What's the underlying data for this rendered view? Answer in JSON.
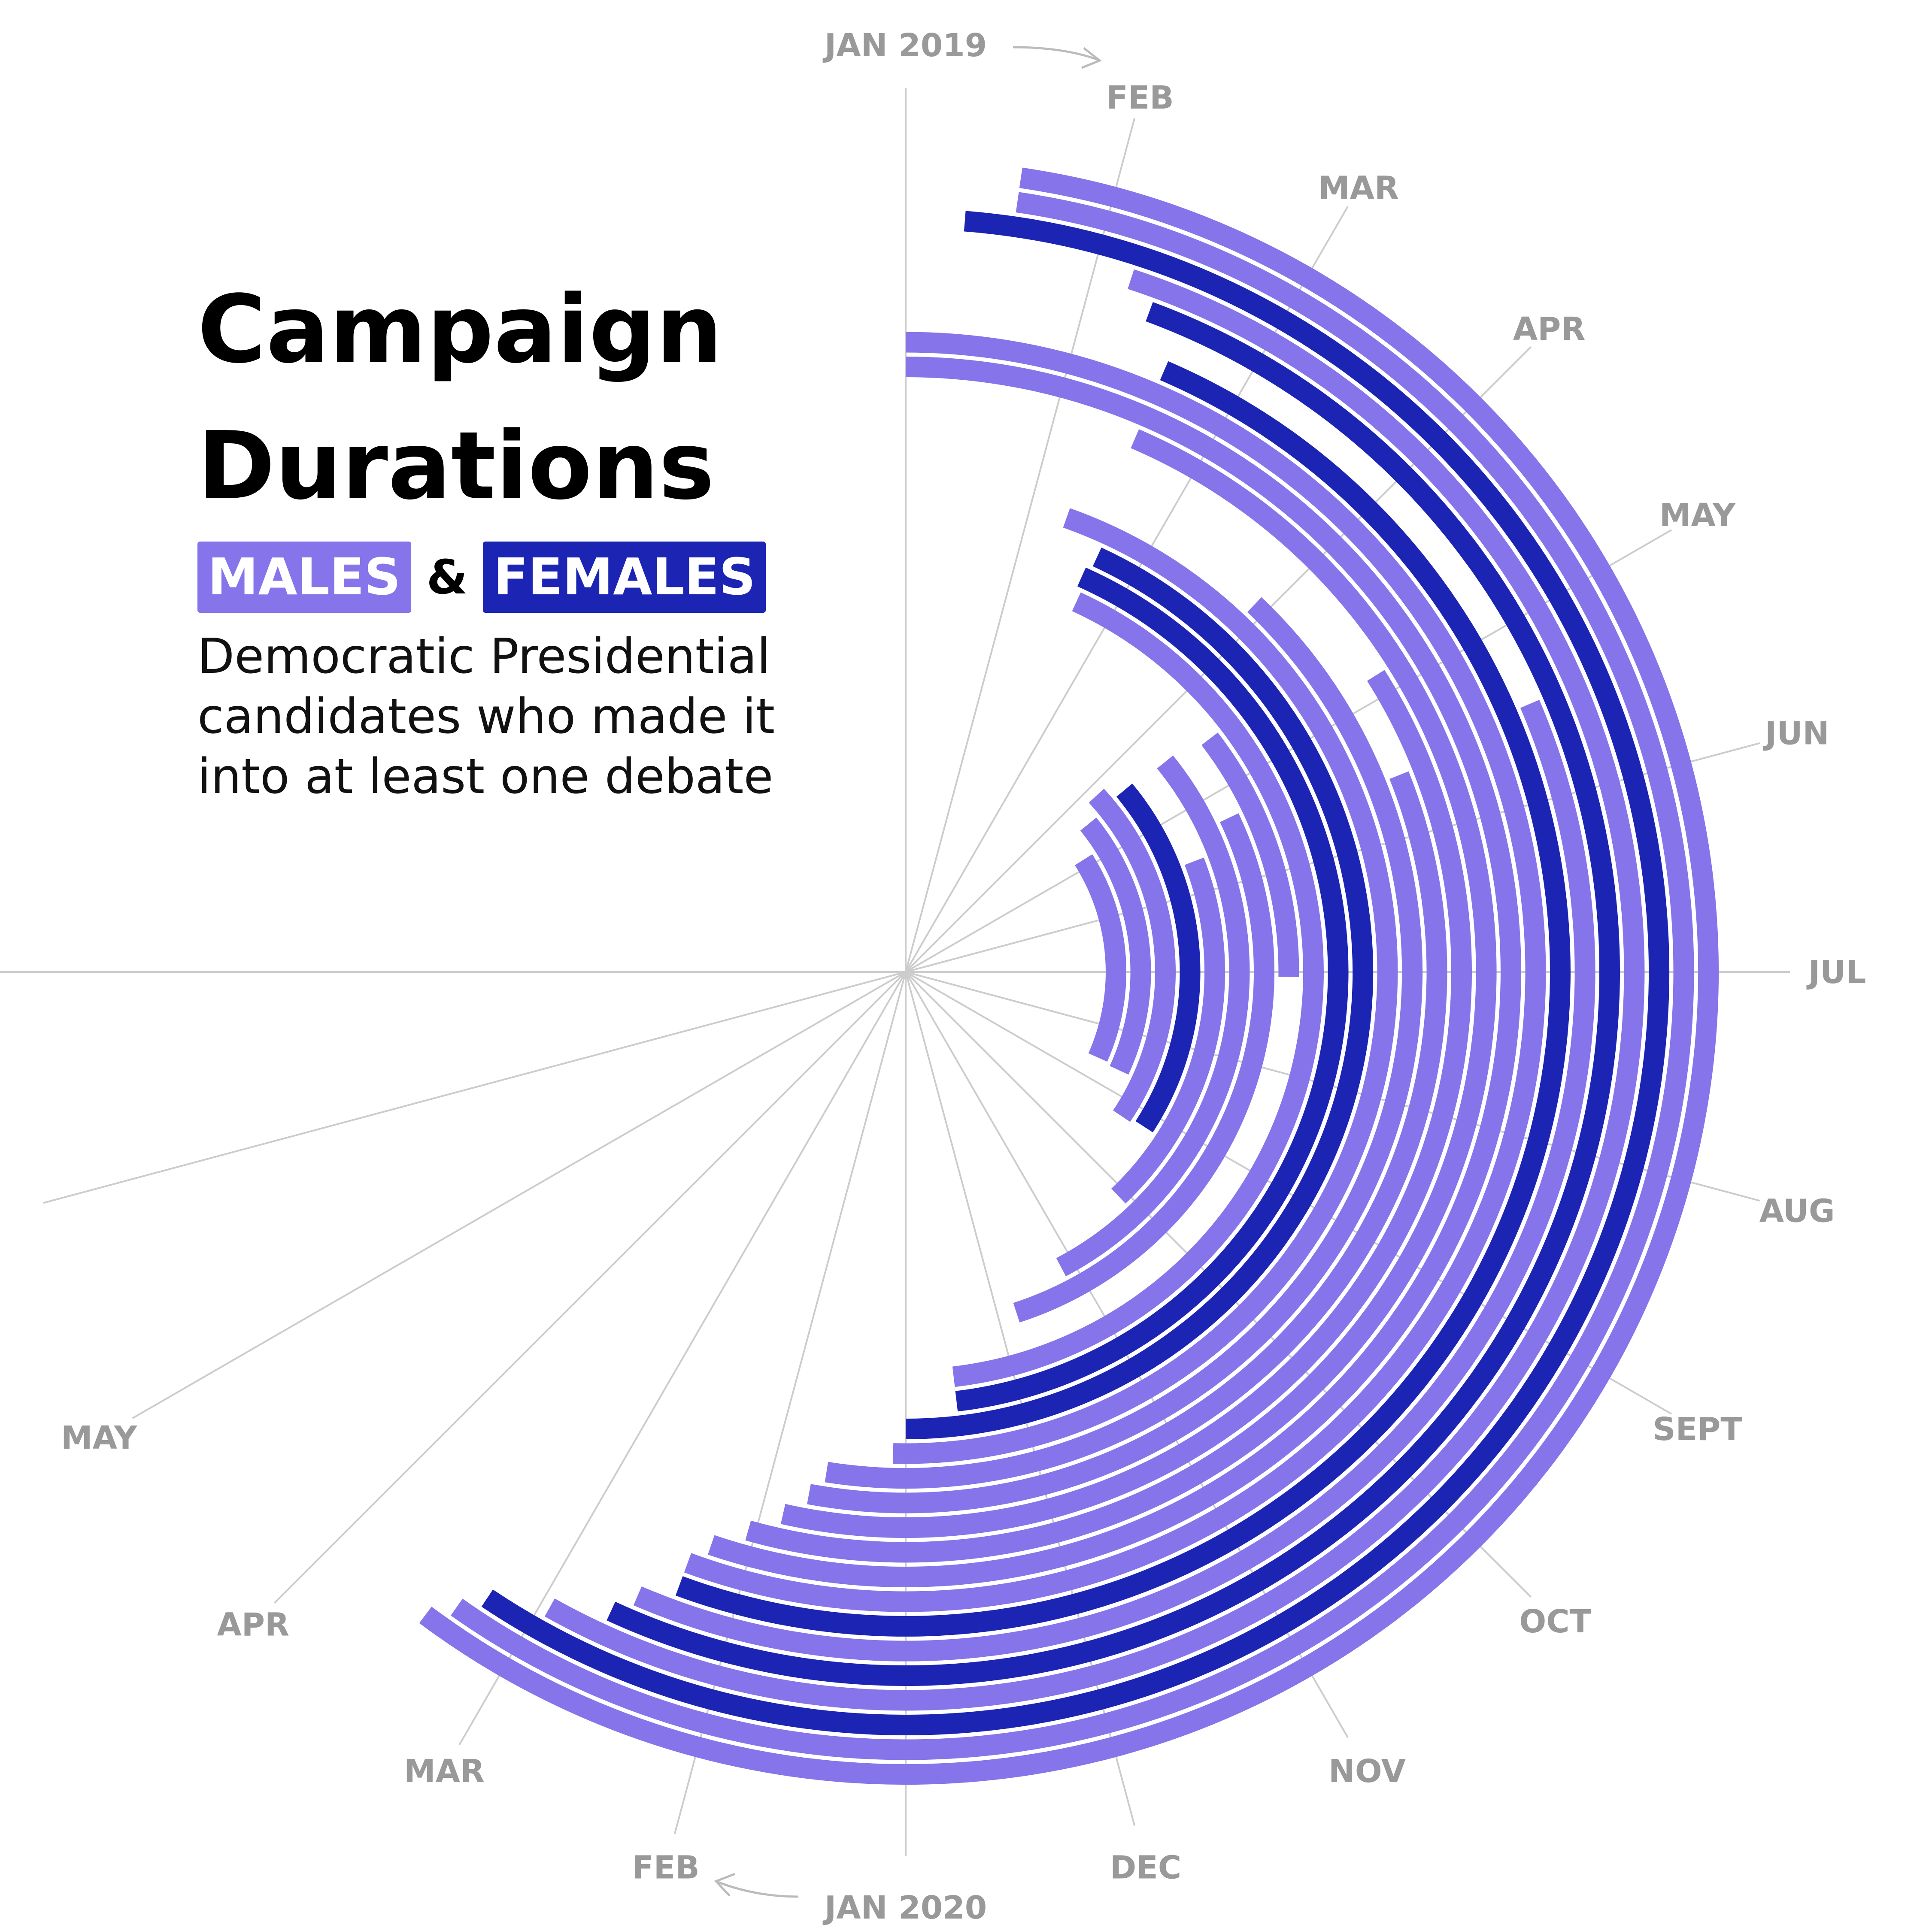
{
  "title": "Campaign Durations",
  "title_lines": [
    "Campaign",
    "Durations"
  ],
  "legend": {
    "males_label": "MALES",
    "ampersand": "&",
    "females_label": "FEMALES",
    "male_color": "#8574ea",
    "female_color": "#1c24b4"
  },
  "subtitle_lines": [
    "Democratic Presidential",
    "candidates who made it",
    "into at least one debate"
  ],
  "chart_data": {
    "type": "radial-bar",
    "description_axis": "months from JAN 2019 (0) clockwise; 12 = JAN 2020",
    "month_labels": [
      {
        "label": "JAN 2019",
        "month": 0
      },
      {
        "label": "FEB",
        "month": 1
      },
      {
        "label": "MAR",
        "month": 2
      },
      {
        "label": "APR",
        "month": 3
      },
      {
        "label": "MAY",
        "month": 4
      },
      {
        "label": "JUN",
        "month": 5
      },
      {
        "label": "JUL",
        "month": 6
      },
      {
        "label": "AUG",
        "month": 7
      },
      {
        "label": "SEPT",
        "month": 8
      },
      {
        "label": "OCT",
        "month": 9
      },
      {
        "label": "NOV",
        "month": 10
      },
      {
        "label": "DEC",
        "month": 11
      },
      {
        "label": "JAN 2020",
        "month": 12
      },
      {
        "label": "FEB",
        "month": 13
      },
      {
        "label": "MAR",
        "month": 14
      },
      {
        "label": "APR",
        "month": 15
      },
      {
        "label": "MAY",
        "month": 16
      }
    ],
    "series_legend": [
      "MALES",
      "FEMALES"
    ],
    "campaigns": [
      {
        "gender": "male",
        "start": 0.55,
        "end": 14.45
      },
      {
        "gender": "male",
        "start": 0.55,
        "end": 14.35
      },
      {
        "gender": "female",
        "start": 0.3,
        "end": 14.25
      },
      {
        "gender": "male",
        "start": 1.2,
        "end": 13.95
      },
      {
        "gender": "female",
        "start": 1.35,
        "end": 13.65
      },
      {
        "gender": "male",
        "start": 4.45,
        "end": 13.55
      },
      {
        "gender": "female",
        "start": 1.55,
        "end": 13.35
      },
      {
        "gender": "male",
        "start": 0.0,
        "end": 13.35
      },
      {
        "gender": "male",
        "start": 0.0,
        "end": 13.25
      },
      {
        "gender": "male",
        "start": 1.55,
        "end": 13.05
      },
      {
        "gender": "male",
        "start": 3.85,
        "end": 12.85
      },
      {
        "gender": "male",
        "start": 4.55,
        "end": 12.7
      },
      {
        "gender": "male",
        "start": 2.9,
        "end": 12.6
      },
      {
        "gender": "male",
        "start": 1.3,
        "end": 12.1
      },
      {
        "gender": "female",
        "start": 1.65,
        "end": 12.0
      },
      {
        "gender": "female",
        "start": 1.6,
        "end": 11.55
      },
      {
        "gender": "male",
        "start": 1.65,
        "end": 11.55
      },
      {
        "gender": "male",
        "start": 3.5,
        "end": 6.05
      },
      {
        "gender": "male",
        "start": 4.3,
        "end": 10.8
      },
      {
        "gender": "male",
        "start": 3.4,
        "end": 10.15
      },
      {
        "gender": "male",
        "start": 4.6,
        "end": 9.1
      },
      {
        "gender": "female",
        "start": 3.35,
        "end": 8.2
      },
      {
        "gender": "male",
        "start": 3.15,
        "end": 8.25
      },
      {
        "gender": "male",
        "start": 3.4,
        "end": 7.65
      },
      {
        "gender": "male",
        "start": 3.85,
        "end": 7.6
      }
    ]
  }
}
